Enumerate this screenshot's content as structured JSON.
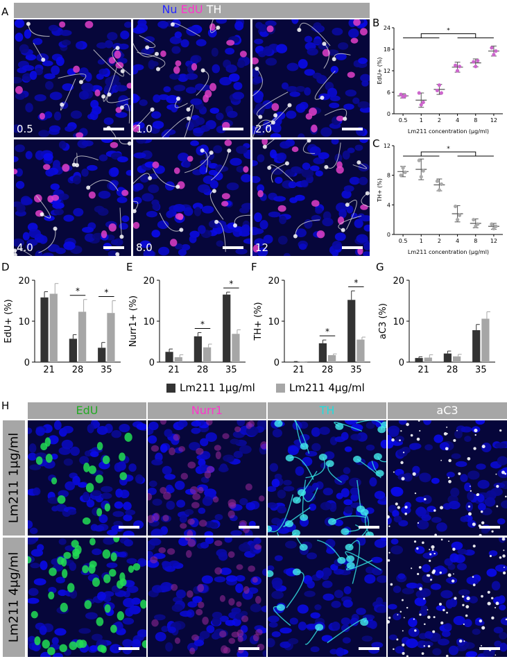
{
  "panel_labels": {
    "A": "A",
    "B": "B",
    "C": "C",
    "D": "D",
    "E": "E",
    "F": "F",
    "G": "G",
    "H": "H"
  },
  "panelA": {
    "header_nu": "Nu",
    "header_edu": "EdU",
    "header_th": "TH",
    "color_nu": "#2020ff",
    "color_edu": "#ff33cc",
    "color_th": "#ffffff",
    "tiles": [
      "0.5",
      "1.0",
      "2.0",
      "4.0",
      "8.0",
      "12"
    ]
  },
  "panelH": {
    "columns": [
      {
        "label": "EdU",
        "color": "#22aa22"
      },
      {
        "label": "Nurr1",
        "color": "#ff33cc"
      },
      {
        "label": "TH",
        "color": "#22dddd"
      },
      {
        "label": "aC3",
        "color": "#ffffff"
      }
    ],
    "rows": [
      "Lm211 1μg/ml",
      "Lm211 4μg/ml"
    ]
  },
  "legend": {
    "s1": "Lm211 1μg/ml",
    "s2": "Lm211 4μg/ml",
    "color1": "#333333",
    "color2": "#a6a6a6"
  },
  "chart_data": [
    {
      "id": "B",
      "type": "scatter",
      "categories": [
        "0.5",
        "1",
        "2",
        "4",
        "8",
        "12"
      ],
      "ylabel": "EdU+ (%)",
      "xlabel": "Lm211 concentration (μg/ml)",
      "ylim": [
        0,
        24
      ],
      "yticks": [
        "0",
        "6",
        "12",
        "18",
        "24"
      ],
      "mean": [
        5,
        3.8,
        6.8,
        13,
        14.2,
        17.5
      ],
      "sd": [
        0.6,
        2.0,
        1.4,
        1.4,
        1.1,
        1.4
      ],
      "points": [
        [
          5.4,
          4.7,
          5.0
        ],
        [
          5.8,
          2.5,
          3.2
        ],
        [
          6.5,
          8.0,
          5.8
        ],
        [
          13.5,
          12.0,
          13.2
        ],
        [
          14.5,
          13.2,
          14.8
        ],
        [
          18.4,
          16.5,
          17.5
        ]
      ],
      "point_color": "#cc66cc",
      "sig": "*"
    },
    {
      "id": "C",
      "type": "scatter",
      "categories": [
        "0.5",
        "1",
        "2",
        "4",
        "8",
        "12"
      ],
      "ylabel": "TH+ (%)",
      "xlabel": "Lm211 concentration (μg/ml)",
      "ylim": [
        0,
        12
      ],
      "yticks": [
        "0",
        "4",
        "8",
        "12"
      ],
      "mean": [
        8.5,
        8.8,
        6.7,
        2.8,
        1.5,
        1.1
      ],
      "sd": [
        0.7,
        1.4,
        0.8,
        1.1,
        0.6,
        0.4
      ],
      "points": [
        [
          8.0,
          9.0,
          8.4
        ],
        [
          10.0,
          7.8,
          8.6
        ],
        [
          7.2,
          6.0,
          6.8
        ],
        [
          3.8,
          2.0,
          2.6
        ],
        [
          2.0,
          1.1,
          1.4
        ],
        [
          1.4,
          0.8,
          1.1
        ]
      ],
      "point_color": "#aaaaaa",
      "sig": "*"
    },
    {
      "id": "D",
      "type": "bar",
      "categories": [
        "21",
        "28",
        "35"
      ],
      "ylabel": "EdU+ (%)",
      "ylim": [
        0,
        20
      ],
      "yticks": [
        "0",
        "10",
        "20"
      ],
      "series": [
        {
          "name": "Lm211 1μg/ml",
          "values": [
            15.8,
            5.7,
            3.5
          ],
          "err": [
            1.4,
            1.0,
            1.3
          ]
        },
        {
          "name": "Lm211 4μg/ml",
          "values": [
            16.7,
            12.3,
            12.0
          ],
          "err": [
            2.5,
            3.0,
            3.0
          ]
        }
      ],
      "sig": [
        false,
        true,
        true
      ]
    },
    {
      "id": "E",
      "type": "bar",
      "categories": [
        "21",
        "28",
        "35"
      ],
      "ylabel": "Nurr1+ (%)",
      "ylim": [
        0,
        20
      ],
      "yticks": [
        "0",
        "10",
        "20"
      ],
      "series": [
        {
          "name": "Lm211 1μg/ml",
          "values": [
            2.5,
            6.3,
            16.5
          ],
          "err": [
            0.7,
            0.9,
            0.6
          ]
        },
        {
          "name": "Lm211 4μg/ml",
          "values": [
            1.2,
            3.6,
            6.9
          ],
          "err": [
            0.6,
            0.8,
            1.0
          ]
        }
      ],
      "sig": [
        false,
        true,
        true
      ]
    },
    {
      "id": "F",
      "type": "bar",
      "categories": [
        "21",
        "28",
        "35"
      ],
      "ylabel": "TH+ (%)",
      "ylim": [
        0,
        20
      ],
      "yticks": [
        "0",
        "10",
        "20"
      ],
      "series": [
        {
          "name": "Lm211 1μg/ml",
          "values": [
            0.1,
            4.6,
            15.2
          ],
          "err": [
            0.05,
            0.8,
            2.2
          ]
        },
        {
          "name": "Lm211 4μg/ml",
          "values": [
            0.05,
            1.7,
            5.5
          ],
          "err": [
            0.05,
            0.3,
            0.6
          ]
        }
      ],
      "sig": [
        false,
        true,
        true
      ]
    },
    {
      "id": "G",
      "type": "bar",
      "categories": [
        "21",
        "28",
        "35"
      ],
      "ylabel": "aC3 (%)",
      "ylim": [
        0,
        20
      ],
      "yticks": [
        "0",
        "10",
        "20"
      ],
      "series": [
        {
          "name": "Lm211 1μg/ml",
          "values": [
            1.0,
            2.1,
            7.8
          ],
          "err": [
            0.3,
            0.6,
            1.4
          ]
        },
        {
          "name": "Lm211 4μg/ml",
          "values": [
            1.1,
            1.4,
            10.6
          ],
          "err": [
            0.7,
            0.5,
            1.7
          ]
        }
      ],
      "sig": [
        false,
        false,
        false
      ]
    }
  ]
}
